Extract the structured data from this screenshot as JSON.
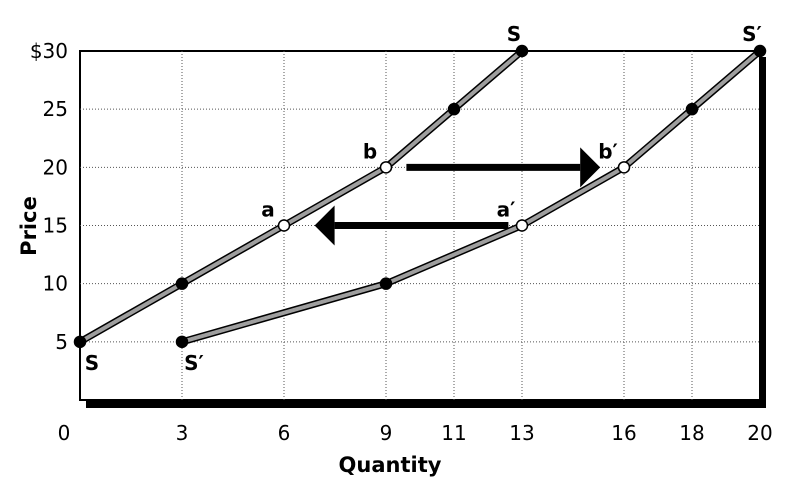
{
  "chart_data": {
    "type": "line",
    "title": "",
    "xlabel": "Quantity",
    "ylabel": "Price",
    "xlim": [
      0,
      20
    ],
    "ylim": [
      0,
      30
    ],
    "x_ticks": [
      {
        "value": 0,
        "label": "0"
      },
      {
        "value": 3,
        "label": "3"
      },
      {
        "value": 6,
        "label": "6"
      },
      {
        "value": 9,
        "label": "9"
      },
      {
        "value": 11,
        "label": "11"
      },
      {
        "value": 13,
        "label": "13"
      },
      {
        "value": 16,
        "label": "16"
      },
      {
        "value": 18,
        "label": "18"
      },
      {
        "value": 20,
        "label": "20"
      }
    ],
    "y_ticks": [
      {
        "value": 5,
        "label": "5"
      },
      {
        "value": 10,
        "label": "10"
      },
      {
        "value": 15,
        "label": "15"
      },
      {
        "value": 20,
        "label": "20"
      },
      {
        "value": 25,
        "label": "25"
      },
      {
        "value": 30,
        "label": "$30"
      }
    ],
    "grid": true,
    "series": [
      {
        "name": "S",
        "end_label": "S",
        "start_label": "S",
        "color": "#9e9e9e",
        "points": [
          {
            "x": 0,
            "y": 5,
            "open": false,
            "label": ""
          },
          {
            "x": 3,
            "y": 10,
            "open": false,
            "label": ""
          },
          {
            "x": 6,
            "y": 15,
            "open": true,
            "label": "a"
          },
          {
            "x": 9,
            "y": 20,
            "open": true,
            "label": "b"
          },
          {
            "x": 11,
            "y": 25,
            "open": false,
            "label": ""
          },
          {
            "x": 13,
            "y": 30,
            "open": false,
            "label": ""
          }
        ]
      },
      {
        "name": "S′",
        "end_label": "S′",
        "start_label": "S′",
        "color": "#9e9e9e",
        "points": [
          {
            "x": 3,
            "y": 5,
            "open": false,
            "label": ""
          },
          {
            "x": 9,
            "y": 10,
            "open": false,
            "label": ""
          },
          {
            "x": 13,
            "y": 15,
            "open": true,
            "label": "a′"
          },
          {
            "x": 16,
            "y": 20,
            "open": true,
            "label": "b′"
          },
          {
            "x": 18,
            "y": 25,
            "open": false,
            "label": ""
          },
          {
            "x": 20,
            "y": 30,
            "open": false,
            "label": ""
          }
        ]
      }
    ],
    "arrows": [
      {
        "from": {
          "x": 9.6,
          "y": 20
        },
        "to": {
          "x": 15.3,
          "y": 20
        },
        "direction": "right"
      },
      {
        "from": {
          "x": 12.6,
          "y": 15
        },
        "to": {
          "x": 6.9,
          "y": 15
        },
        "direction": "left"
      }
    ]
  }
}
